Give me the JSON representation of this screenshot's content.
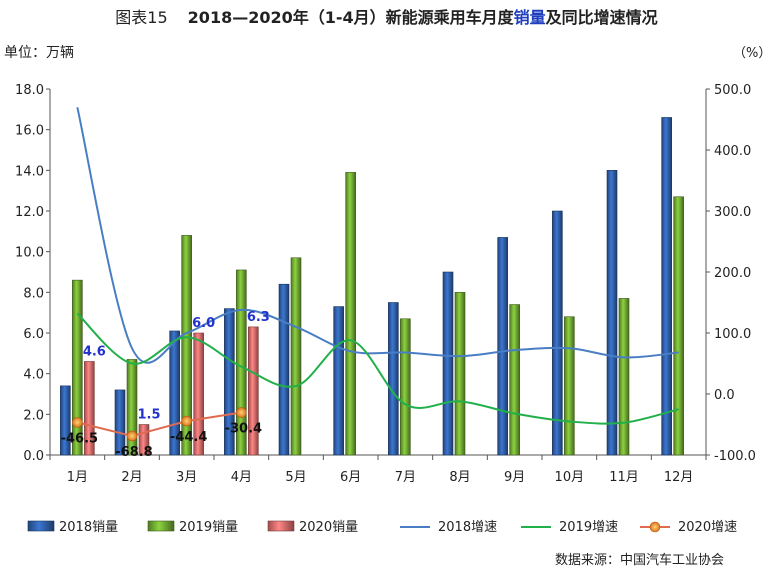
{
  "header": {
    "figure_label": "图表15",
    "title_part1": "2018—2020年（1-4月）新能源乘用车月度",
    "title_highlight": "销量",
    "title_part2": "及同比增速情况"
  },
  "units": {
    "left": "单位：万辆",
    "right": "（%）"
  },
  "source": "数据来源：中国汽车工业协会",
  "chart_data": {
    "type": "bar",
    "categories": [
      "1月",
      "2月",
      "3月",
      "4月",
      "5月",
      "6月",
      "7月",
      "8月",
      "9月",
      "10月",
      "11月",
      "12月"
    ],
    "y_left": {
      "lim": [
        0,
        18
      ],
      "ticks": [
        "0.0",
        "2.0",
        "4.0",
        "6.0",
        "8.0",
        "10.0",
        "12.0",
        "14.0",
        "16.0",
        "18.0"
      ]
    },
    "y_right": {
      "lim": [
        -100,
        500
      ],
      "ticks": [
        "-100.0",
        "0.0",
        "100.0",
        "200.0",
        "300.0",
        "400.0",
        "500.0"
      ]
    },
    "bar_series": [
      {
        "name": "2018销量",
        "color": "#2f5fa8",
        "values": [
          3.4,
          3.2,
          6.1,
          7.2,
          8.4,
          7.3,
          7.5,
          9.0,
          10.7,
          12.0,
          14.0,
          16.6
        ]
      },
      {
        "name": "2019销量",
        "color": "#70a832",
        "values": [
          8.6,
          4.7,
          10.8,
          9.1,
          9.7,
          13.9,
          6.7,
          8.0,
          7.4,
          6.8,
          7.7,
          12.7
        ]
      },
      {
        "name": "2020销量",
        "color": "#e06b6b",
        "values": [
          4.6,
          1.5,
          6.0,
          6.3
        ],
        "labels": [
          "4.6",
          "1.5",
          "6.0",
          "6.3"
        ]
      }
    ],
    "line_series": [
      {
        "name": "2018增速",
        "color": "#4a7ec4",
        "values": [
          470,
          75,
          100,
          138,
          110,
          70,
          68,
          62,
          72,
          75,
          60,
          68
        ]
      },
      {
        "name": "2019增速",
        "color": "#22b04a",
        "values": [
          132,
          50,
          93,
          45,
          13,
          88,
          -17,
          -12,
          -32,
          -45,
          -47,
          -25
        ]
      },
      {
        "name": "2020增速",
        "color": "#e8882a",
        "values": [
          -46.5,
          -68.8,
          -44.4,
          -30.4
        ],
        "labels": [
          "-46.5",
          "-68.8",
          "-44.4",
          "-30.4"
        ]
      }
    ],
    "legend_position": "bottom"
  }
}
